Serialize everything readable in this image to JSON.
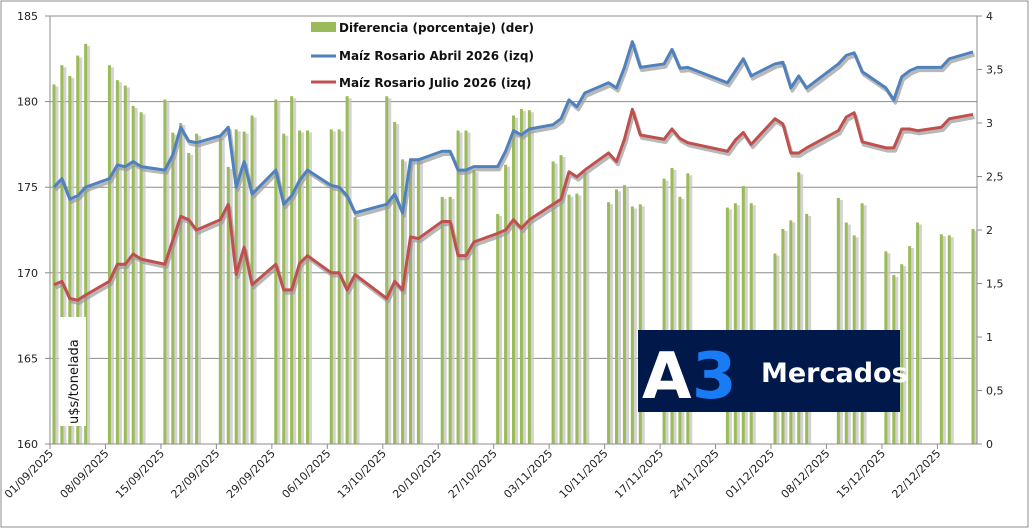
{
  "chart_data": {
    "type": "bar+line",
    "title": "",
    "ylabel": "u$s/tonelada",
    "ylabel_right": "",
    "ylim": [
      160,
      185
    ],
    "ylim_right": [
      0,
      4
    ],
    "yticks": [
      "160",
      "165",
      "170",
      "175",
      "180",
      "185"
    ],
    "yticks_right": [
      "0",
      "0,5",
      "1",
      "1,5",
      "2",
      "2,5",
      "3",
      "3,5",
      "4"
    ],
    "xticks": [
      "01/09/2025",
      "08/09/2025",
      "15/09/2025",
      "22/09/2025",
      "29/09/2025",
      "06/10/2025",
      "13/10/2025",
      "20/10/2025",
      "27/10/2025",
      "03/11/2025",
      "10/11/2025",
      "17/11/2025",
      "24/11/2025",
      "01/12/2025",
      "08/12/2025",
      "15/12/2025",
      "22/12/2025"
    ],
    "grid": true,
    "legend_position": "top-center",
    "dates": [
      "01/09",
      "02/09",
      "03/09",
      "04/09",
      "05/09",
      "08/09",
      "09/09",
      "10/09",
      "11/09",
      "12/09",
      "15/09",
      "16/09",
      "17/09",
      "18/09",
      "19/09",
      "22/09",
      "23/09",
      "24/09",
      "25/09",
      "26/09",
      "29/09",
      "30/09",
      "01/10",
      "02/10",
      "03/10",
      "06/10",
      "07/10",
      "08/10",
      "09/10",
      "13/10",
      "14/10",
      "15/10",
      "16/10",
      "17/10",
      "20/10",
      "21/10",
      "22/10",
      "23/10",
      "24/10",
      "27/10",
      "28/10",
      "29/10",
      "30/10",
      "31/10",
      "03/11",
      "04/11",
      "05/11",
      "06/11",
      "07/11",
      "10/11",
      "11/11",
      "12/11",
      "13/11",
      "14/11",
      "17/11",
      "18/11",
      "19/11",
      "20/11",
      "25/11",
      "26/11",
      "27/11",
      "28/11",
      "01/12",
      "02/12",
      "03/12",
      "04/12",
      "05/12",
      "09/12",
      "10/12",
      "11/12",
      "12/12",
      "15/12",
      "16/12",
      "17/12",
      "18/12",
      "19/12",
      "22/12",
      "23/12",
      "26/12"
    ],
    "series": [
      {
        "name": "Diferencia (porcentaje) (der)",
        "type": "bar",
        "axis": "right",
        "color": "#9bbb59",
        "values": [
          3.36,
          3.54,
          3.44,
          3.63,
          3.74,
          3.54,
          3.4,
          3.35,
          3.16,
          3.1,
          3.22,
          2.91,
          3.0,
          2.72,
          2.9,
          2.87,
          2.59,
          2.94,
          2.92,
          3.07,
          3.22,
          2.9,
          3.25,
          2.93,
          2.93,
          2.94,
          2.94,
          3.25,
          2.12,
          3.25,
          3.01,
          2.66,
          2.67,
          2.67,
          2.31,
          2.31,
          2.93,
          2.93,
          2.56,
          2.15,
          2.61,
          3.07,
          3.13,
          3.12,
          2.64,
          2.7,
          2.33,
          2.34,
          2.54,
          2.26,
          2.38,
          2.42,
          2.22,
          2.24,
          2.48,
          2.58,
          2.31,
          2.53,
          2.21,
          2.25,
          2.41,
          2.25,
          1.78,
          2.01,
          2.09,
          2.54,
          2.15,
          2.3,
          2.07,
          1.95,
          2.25,
          1.8,
          1.58,
          1.68,
          1.85,
          2.07,
          1.96,
          1.95,
          2.01
        ]
      },
      {
        "name": "Maíz Rosario Abril 2026 (izq)",
        "type": "line",
        "axis": "left",
        "color": "#4f81bd",
        "values": [
          175.0,
          175.5,
          174.3,
          174.5,
          175.0,
          175.5,
          176.3,
          176.2,
          176.5,
          176.2,
          176.0,
          176.9,
          178.5,
          177.7,
          177.6,
          178.0,
          178.5,
          175.0,
          176.5,
          174.6,
          176.0,
          174.0,
          174.5,
          175.4,
          176.0,
          175.1,
          175.0,
          174.5,
          173.5,
          174.0,
          174.6,
          173.5,
          176.6,
          176.6,
          177.1,
          177.1,
          176.0,
          176.0,
          176.2,
          176.2,
          177.1,
          178.3,
          178.05,
          178.4,
          178.65,
          179.0,
          180.1,
          179.7,
          180.5,
          181.1,
          180.8,
          182.0,
          183.5,
          182.0,
          182.2,
          183.05,
          181.95,
          182.0,
          181.1,
          181.8,
          182.5,
          181.5,
          182.2,
          182.3,
          180.8,
          181.5,
          180.8,
          182.2,
          182.7,
          182.85,
          181.75,
          180.8,
          180.1,
          181.45,
          181.8,
          182.0,
          182.0,
          182.5,
          182.9
        ]
      },
      {
        "name": "Maíz Rosario Julio 2026 (izq)",
        "type": "line",
        "axis": "left",
        "color": "#c0504d",
        "values": [
          169.3,
          169.5,
          168.5,
          168.4,
          168.7,
          169.5,
          170.5,
          170.5,
          171.1,
          170.8,
          170.5,
          171.9,
          173.3,
          173.1,
          172.5,
          173.1,
          174.0,
          169.9,
          171.5,
          169.3,
          170.5,
          169.0,
          169.0,
          170.55,
          171.0,
          170.0,
          170.0,
          169.0,
          169.9,
          168.5,
          169.5,
          169.0,
          172.1,
          172.0,
          173.0,
          173.0,
          171.0,
          171.0,
          171.8,
          172.3,
          172.5,
          173.1,
          172.6,
          173.1,
          174.0,
          174.3,
          175.9,
          175.6,
          176.0,
          177.0,
          176.5,
          177.8,
          179.55,
          178.05,
          177.8,
          178.4,
          177.85,
          177.6,
          177.1,
          177.75,
          178.2,
          177.5,
          179.0,
          178.7,
          177.0,
          177.0,
          177.3,
          178.3,
          179.1,
          179.35,
          177.65,
          177.3,
          177.3,
          178.4,
          178.4,
          178.3,
          178.5,
          179.0,
          179.25
        ]
      }
    ]
  },
  "logo": {
    "text_a": "A",
    "text_3": "3",
    "text_word": "Mercados",
    "bg_color": "#00194a",
    "accent_color": "#1a7cf5"
  }
}
